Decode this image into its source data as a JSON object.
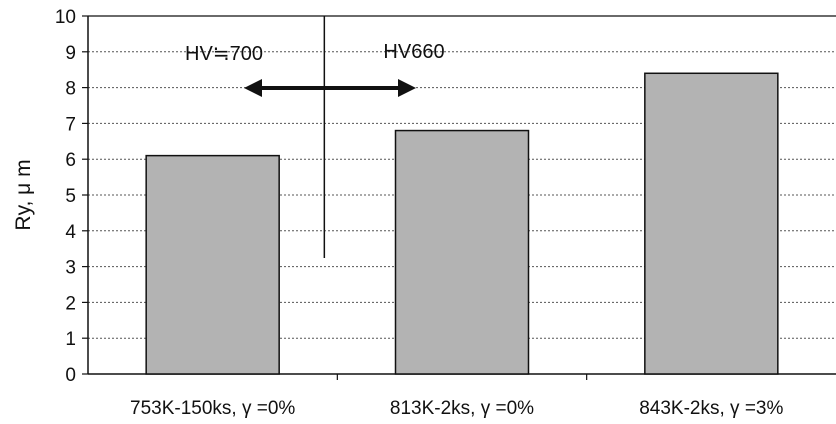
{
  "chart_data": {
    "type": "bar",
    "categories": [
      "753K-150ks, γ =0%",
      "813K-2ks, γ =0%",
      "843K-2ks, γ =3%"
    ],
    "values": [
      6.1,
      6.8,
      8.4
    ],
    "title": "",
    "xlabel": "",
    "ylabel": "Ry, μ m",
    "ylim": [
      0,
      10
    ],
    "yticks": [
      0,
      1,
      2,
      3,
      4,
      5,
      6,
      7,
      8,
      9,
      10
    ],
    "grid": true,
    "bar_color": "#b3b3b3",
    "annotations": {
      "left_label": "HV≒700",
      "right_label": "HV660",
      "arrow": "double-headed horizontal arrow under the labels",
      "divider": "vertical line separating the first and second bars"
    }
  }
}
